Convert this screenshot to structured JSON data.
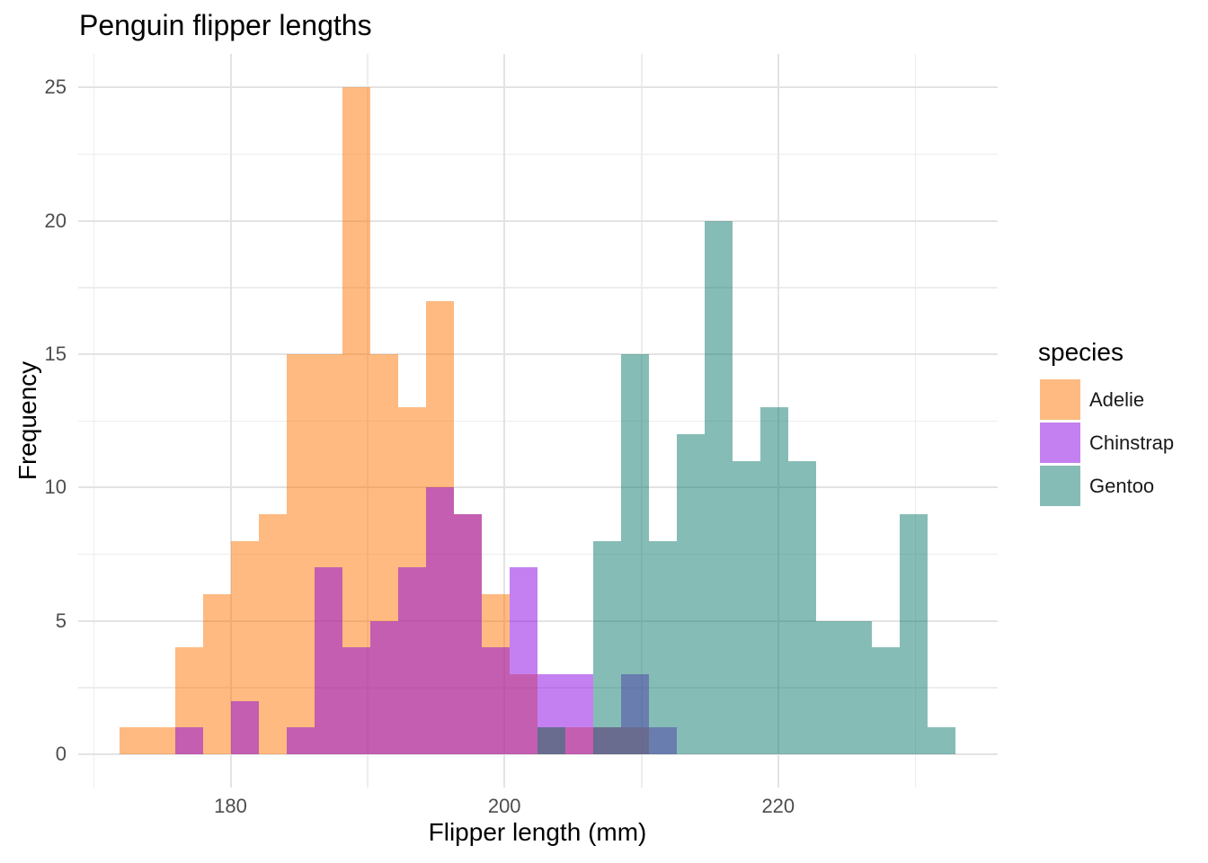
{
  "chart_data": {
    "type": "bar",
    "subtype": "overlaid histogram (position=identity, alpha=0.5)",
    "title": "Penguin flipper lengths",
    "xlabel": "Flipper length (mm)",
    "ylabel": "Frequency",
    "x_ticks": [
      180,
      200,
      220
    ],
    "x_minor_gridlines": [
      170,
      190,
      210,
      230
    ],
    "y_ticks": [
      0,
      5,
      10,
      15,
      20,
      25
    ],
    "y_minor_gridlines": [
      2.5,
      7.5,
      12.5,
      17.5,
      22.5
    ],
    "xlim": [
      168.87,
      236.03
    ],
    "ylim": [
      -1.25,
      26.25
    ],
    "grid": true,
    "legend_title": "species",
    "legend_position": "right",
    "bin_start": 171.914,
    "bin_width": 2.0345,
    "n_bins": 30,
    "series": [
      {
        "name": "Adelie",
        "fill_rgba": "rgba(253,117,1,0.5)",
        "swatch_hex": "#FEBA80",
        "counts": [
          1,
          1,
          4,
          6,
          8,
          9,
          15,
          15,
          25,
          15,
          13,
          17,
          9,
          6,
          3,
          1,
          1,
          1,
          1,
          0,
          0,
          0,
          0,
          0,
          0,
          0,
          0,
          0,
          0,
          0
        ],
        "total": 151
      },
      {
        "name": "Chinstrap",
        "fill_rgba": "rgba(137,1,225,0.5)",
        "swatch_hex": "#C480F0",
        "counts": [
          0,
          0,
          1,
          0,
          2,
          0,
          1,
          7,
          4,
          5,
          7,
          10,
          9,
          4,
          7,
          3,
          3,
          1,
          3,
          1,
          0,
          0,
          0,
          0,
          0,
          0,
          0,
          0,
          0,
          0
        ],
        "total": 68
      },
      {
        "name": "Gentoo",
        "fill_rgba": "rgba(13,121,109,0.5)",
        "swatch_hex": "#86BCB6",
        "counts": [
          0,
          0,
          0,
          0,
          0,
          0,
          0,
          0,
          0,
          0,
          0,
          0,
          0,
          0,
          0,
          1,
          0,
          8,
          15,
          8,
          12,
          20,
          11,
          13,
          11,
          5,
          5,
          4,
          9,
          1
        ],
        "total": 123
      }
    ],
    "overlap_note": "bars overlap with 50% alpha; orange+purple reads magenta, purple+teal reads slate blue",
    "gridline_major_color": "#e3e3e3",
    "gridline_minor_color": "#ededed",
    "tick_label_color": "#4d4d4d",
    "text_color": "#000000",
    "background_color": "#ffffff"
  }
}
